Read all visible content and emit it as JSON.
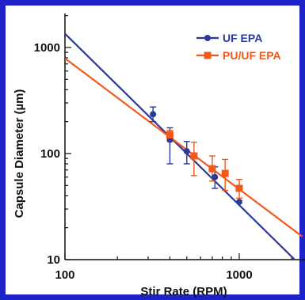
{
  "chart_data": {
    "type": "scatter",
    "title": "",
    "xlabel": "Stir Rate (RPM)",
    "ylabel": "Capsule Diameter (µm)",
    "xscale": "log",
    "yscale": "log",
    "xlim": [
      100,
      2300
    ],
    "ylim": [
      10,
      2000
    ],
    "x_ticks": [
      {
        "value": 100,
        "label": "100"
      },
      {
        "value": 1000,
        "label": "1000"
      }
    ],
    "y_ticks": [
      {
        "value": 10,
        "label": "10"
      },
      {
        "value": 100,
        "label": "100"
      },
      {
        "value": 1000,
        "label": "1000"
      }
    ],
    "grid": false,
    "legend_position": "top-right",
    "series": [
      {
        "name": "UF EPA",
        "color": "#2b3a9a",
        "marker": "circle",
        "points": [
          {
            "x": 320,
            "y": 235,
            "err_low": 200,
            "err_high": 275
          },
          {
            "x": 400,
            "y": 135,
            "err_low": 80,
            "err_high": 175
          },
          {
            "x": 500,
            "y": 105,
            "err_low": 80,
            "err_high": 130
          },
          {
            "x": 725,
            "y": 60,
            "err_low": 47,
            "err_high": 75
          },
          {
            "x": 1000,
            "y": 35,
            "err_low": 35,
            "err_high": 35
          }
        ],
        "fit_line": [
          {
            "x": 100,
            "y": 1350
          },
          {
            "x": 2300,
            "y": 8.5
          }
        ]
      },
      {
        "name": "PU/UF EPA",
        "color": "#f05a1e",
        "marker": "square",
        "points": [
          {
            "x": 400,
            "y": 150,
            "err_low": 130,
            "err_high": 165
          },
          {
            "x": 550,
            "y": 95,
            "err_low": 62,
            "err_high": 128
          },
          {
            "x": 700,
            "y": 72,
            "err_low": 55,
            "err_high": 95
          },
          {
            "x": 830,
            "y": 65,
            "err_low": 45,
            "err_high": 88
          },
          {
            "x": 1000,
            "y": 47,
            "err_low": 38,
            "err_high": 57
          }
        ],
        "fit_line": [
          {
            "x": 100,
            "y": 790
          },
          {
            "x": 2300,
            "y": 16.5
          }
        ]
      }
    ]
  },
  "colors": {
    "frame": "#1e22c8",
    "axis": "#111111"
  }
}
